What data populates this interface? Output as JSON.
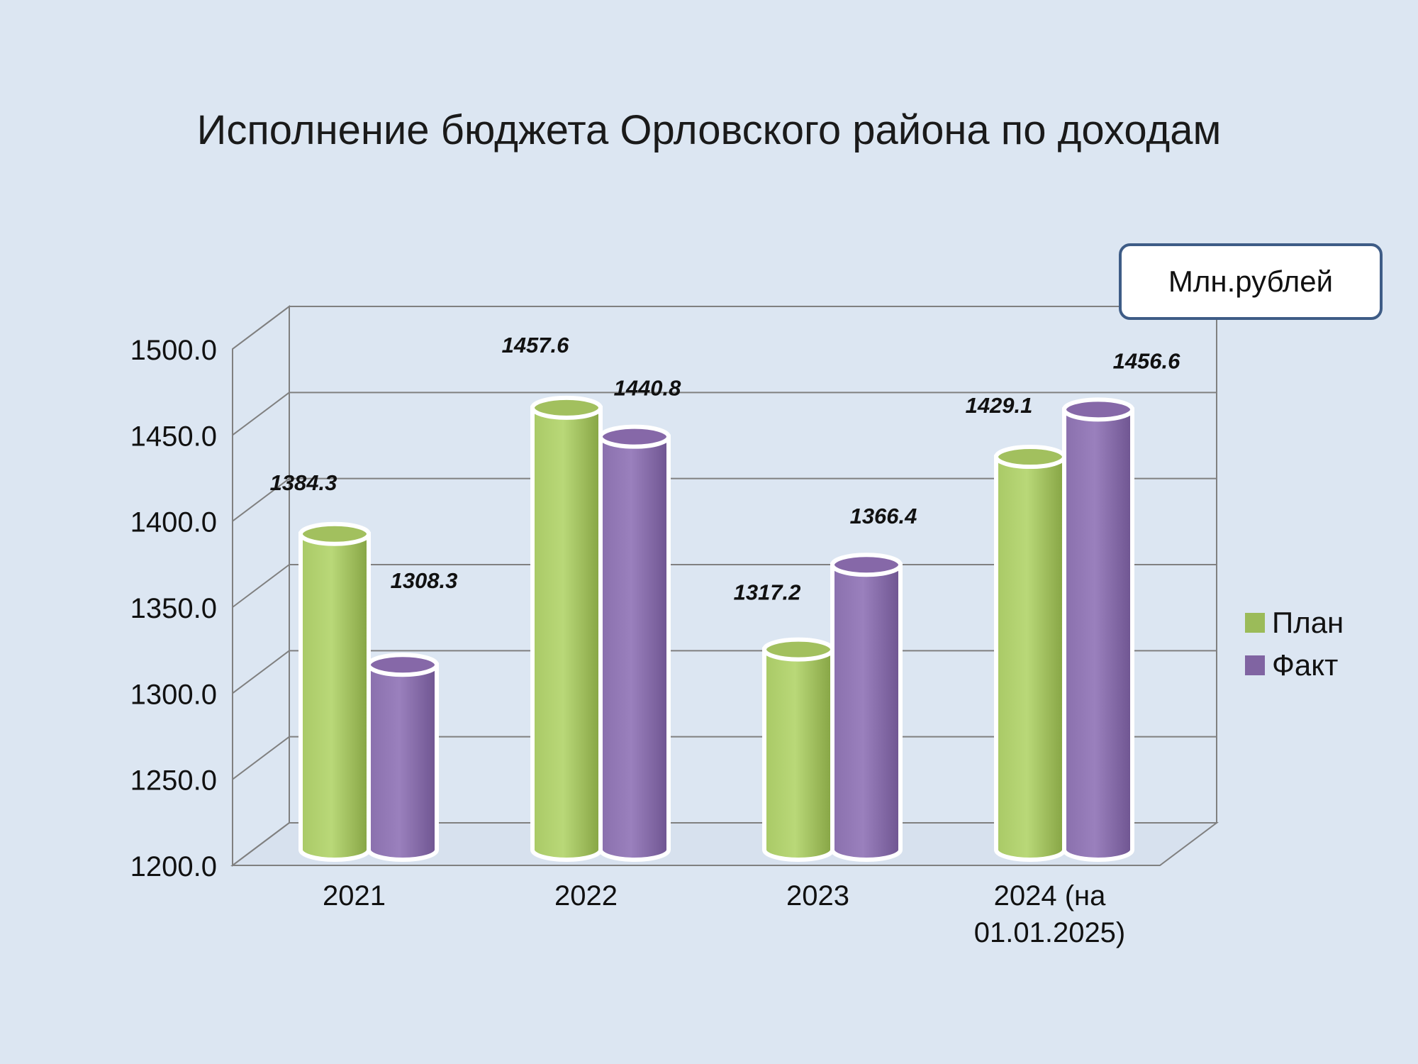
{
  "title": "Исполнение бюджета Орловского района по доходам",
  "unit_label": "Млн.рублей",
  "colors": {
    "plan": "#9bbb59",
    "fact": "#8064a2",
    "background": "#dce6f2"
  },
  "legend": [
    {
      "label": "План",
      "color": "#9bbb59"
    },
    {
      "label": "Факт",
      "color": "#8064a2"
    }
  ],
  "chart_data": {
    "type": "bar",
    "title": "Исполнение бюджета Орловского района по доходам",
    "categories": [
      "2021",
      "2022",
      "2023",
      "2024 (на 01.01.2025)"
    ],
    "category_lines": [
      [
        "2021"
      ],
      [
        "2022"
      ],
      [
        "2023"
      ],
      [
        "2024 (на",
        "01.01.2025)"
      ]
    ],
    "series": [
      {
        "name": "План",
        "values": [
          1384.3,
          1457.6,
          1317.2,
          1429.1
        ],
        "color": "#9bbb59"
      },
      {
        "name": "Факт",
        "values": [
          1308.3,
          1440.8,
          1366.4,
          1456.6
        ],
        "color": "#8064a2"
      }
    ],
    "data_labels": [
      [
        "1384.3",
        "1457.6",
        "1317.2",
        "1429.1"
      ],
      [
        "1308.3",
        "1440.8",
        "1366.4",
        "1456.6"
      ]
    ],
    "ylim": [
      1200,
      1500
    ],
    "yticks": [
      "1200.0",
      "1250.0",
      "1300.0",
      "1350.0",
      "1400.0",
      "1450.0",
      "1500.0"
    ],
    "ytick_values": [
      1200,
      1250,
      1300,
      1350,
      1400,
      1450,
      1500
    ],
    "grid": true,
    "legend_position": "right",
    "style": "3d-cylinder"
  }
}
